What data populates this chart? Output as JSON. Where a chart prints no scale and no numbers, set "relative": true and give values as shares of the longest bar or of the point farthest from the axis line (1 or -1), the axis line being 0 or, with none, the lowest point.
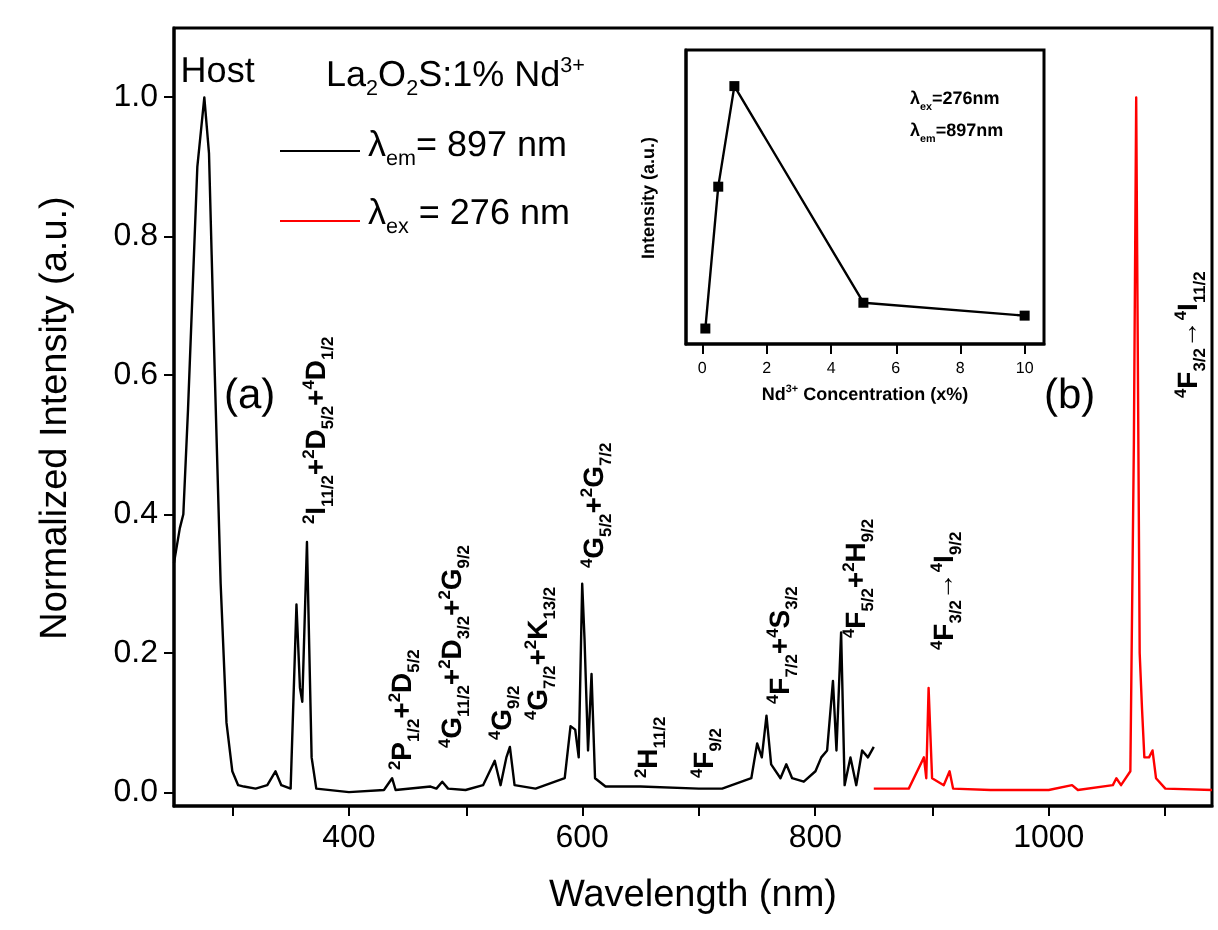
{
  "chart_data": [
    {
      "type": "line",
      "xlabel": "Wavelength (nm)",
      "ylabel": "Normalized Intensity (a.u.)",
      "legend_title": "La$_{2}$O$_{2}$S:1% Nd$^{3+}$",
      "legend": "top left",
      "xlim": [
        250,
        1140
      ],
      "ylim": [
        -0.02,
        1.1
      ],
      "xticks": [
        {
          "value": 300,
          "label": null
        },
        400,
        {
          "value": 500,
          "label": null
        },
        600,
        {
          "value": 700,
          "label": null
        },
        800,
        {
          "value": 900,
          "label": null
        },
        1000,
        {
          "value": 1100,
          "label": null
        }
      ],
      "yticks": [
        {
          "value": 0,
          "label": "0.0"
        },
        0.2,
        0.4,
        0.6,
        0.8,
        {
          "value": 1,
          "label": "1.0"
        }
      ],
      "series": [
        {
          "name": "λ$_{em}$= 897 nm",
          "color": "#000000",
          "x": [
            250,
            255,
            258,
            262,
            270,
            276,
            280,
            285,
            290,
            295,
            300,
            305,
            310,
            320,
            330,
            337,
            342,
            350,
            355,
            358,
            360,
            364,
            368,
            372,
            400,
            430,
            437,
            440,
            470,
            475,
            480,
            485,
            500,
            515,
            525,
            530,
            535,
            538,
            542,
            560,
            585,
            590,
            594,
            597,
            600,
            602,
            605,
            608,
            611,
            620,
            650,
            700,
            720,
            745,
            750,
            754,
            758,
            762,
            770,
            775,
            780,
            790,
            800,
            805,
            810,
            815,
            818,
            822,
            825,
            830,
            835,
            840,
            845,
            850
          ],
          "values": [
            0.33,
            0.38,
            0.4,
            0.55,
            0.9,
            1.0,
            0.92,
            0.6,
            0.3,
            0.1,
            0.03,
            0.01,
            0.008,
            0.005,
            0.01,
            0.03,
            0.01,
            0.005,
            0.27,
            0.15,
            0.13,
            0.36,
            0.05,
            0.005,
            0.0,
            0.003,
            0.02,
            0.003,
            0.008,
            0.005,
            0.015,
            0.005,
            0.003,
            0.01,
            0.045,
            0.01,
            0.05,
            0.065,
            0.01,
            0.005,
            0.02,
            0.095,
            0.09,
            0.05,
            0.3,
            0.22,
            0.06,
            0.17,
            0.02,
            0.008,
            0.008,
            0.005,
            0.005,
            0.02,
            0.07,
            0.05,
            0.11,
            0.04,
            0.02,
            0.04,
            0.02,
            0.015,
            0.03,
            0.05,
            0.06,
            0.16,
            0.06,
            0.23,
            0.01,
            0.05,
            0.01,
            0.06,
            0.05,
            0.065
          ]
        },
        {
          "name": "λ$_{ex}$ = 276 nm",
          "color": "#ff0000",
          "x": [
            850,
            880,
            893,
            895,
            897,
            900,
            910,
            915,
            918,
            950,
            1000,
            1020,
            1025,
            1055,
            1058,
            1062,
            1070,
            1073,
            1075,
            1078,
            1080,
            1082,
            1086,
            1089,
            1092,
            1100,
            1140
          ],
          "values": [
            0.005,
            0.005,
            0.05,
            0.02,
            0.15,
            0.02,
            0.01,
            0.03,
            0.005,
            0.003,
            0.003,
            0.01,
            0.003,
            0.01,
            0.02,
            0.01,
            0.03,
            0.5,
            1.0,
            0.2,
            0.12,
            0.05,
            0.05,
            0.06,
            0.02,
            0.005,
            0.003
          ]
        }
      ],
      "annotations": [
        {
          "text": "Host",
          "x": 276,
          "y": 1.0
        },
        "$^{2}$I$_{11/2}$+$^{2}$D$_{5/2}$+$^{4}$D$_{1/2}$",
        "$^{2}$P$_{1/2}$+$^{2}$D$_{5/2}$",
        "$^{4}$G$_{11/2}$+$^{2}$D$_{3/2}$+$^{2}$G$_{9/2}$",
        "$^{4}$G$_{9/2}$",
        "$^{4}$G$_{7/2}$+$^{2}$K$_{13/2}$",
        "$^{4}$G$_{5/2}$+$^{2}$G$_{7/2}$",
        "$^{2}$H$_{11/2}$",
        "$^{4}$F$_{9/2}$",
        "$^{4}$F$_{7/2}$+$^{4}$S$_{3/2}$",
        "$^{4}$F$_{5/2}$+$^{2}$H$_{9/2}$",
        "$^{4}$F$_{3/2}$→$^{4}$I$_{9/2}$",
        "$^{4}$F$_{3/2}$→$^{4}$I$_{11/2}$",
        "(a)",
        "(b)"
      ]
    },
    {
      "type": "line",
      "xlabel": "Nd$^{3+}$ Concentration (x%)",
      "ylabel": "Intensity (a.u.)",
      "relative": true,
      "marker": "square",
      "color": "#000000",
      "xlim": [
        -0.5,
        10.6
      ],
      "xticks": [
        0,
        2,
        4,
        6,
        8,
        10
      ],
      "x": [
        0.1,
        0.5,
        1,
        5,
        10
      ],
      "values": [
        0.06,
        0.61,
        1,
        0.16,
        0.11
      ],
      "annotations": [
        "λ$_{ex}$=276nm",
        "λ$_{em}$=897nm"
      ]
    }
  ]
}
